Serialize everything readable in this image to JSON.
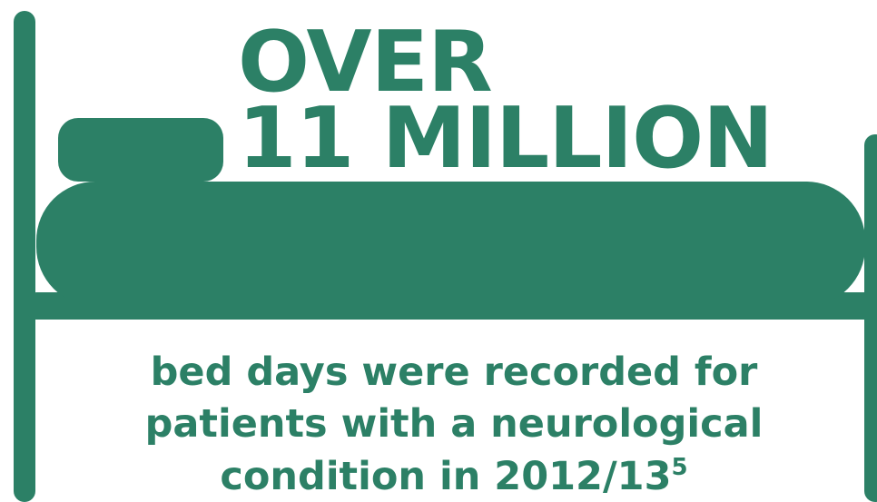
{
  "colors": {
    "accent": "#2c8066",
    "background": "#ffffff"
  },
  "icon": "bed-icon",
  "headline": {
    "line1": "OVER",
    "line2": "11 MILLION"
  },
  "caption": {
    "line1": "bed days were recorded for",
    "line2": "patients with a neurological",
    "line3": "condition in 2012/13",
    "footnote_marker": "5"
  }
}
